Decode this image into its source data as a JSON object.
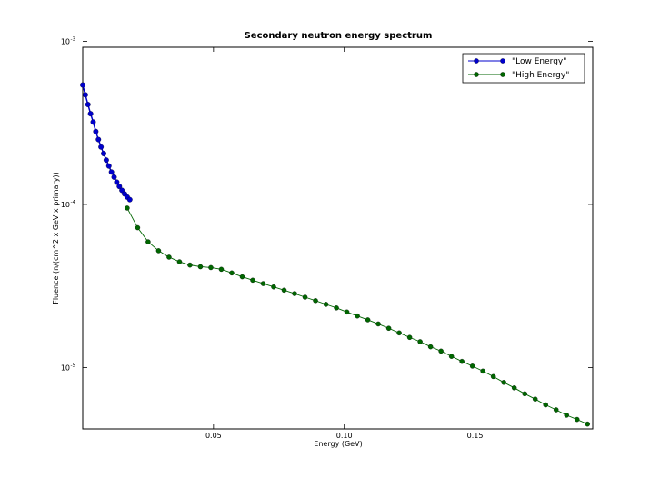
{
  "chart_data": {
    "type": "line",
    "title": "Secondary neutron energy spectrum",
    "xlabel": "Energy (GeV)",
    "ylabel": "Fluence (n/(cm^2 x GeV x primary))",
    "xlim": [
      0.0,
      0.195
    ],
    "ylim": [
      4.2e-06,
      0.00092
    ],
    "yscale": "log",
    "grid": false,
    "legend_position": "top-right",
    "x_ticks": [
      {
        "value": 0.05,
        "label": "0.05"
      },
      {
        "value": 0.1,
        "label": "0.10"
      },
      {
        "value": 0.15,
        "label": "0.15"
      }
    ],
    "y_ticks": [
      {
        "value": 1e-05,
        "base": "10",
        "exp": "-5"
      },
      {
        "value": 0.0001,
        "base": "10",
        "exp": "-4"
      },
      {
        "value": 0.001,
        "base": "10",
        "exp": "-3"
      }
    ],
    "series": [
      {
        "name": "\"Low Energy\"",
        "color": "#0000cc",
        "marker": "circle",
        "x": [
          0.0,
          0.001,
          0.002,
          0.003,
          0.004,
          0.005,
          0.006,
          0.007,
          0.008,
          0.009,
          0.01,
          0.011,
          0.012,
          0.013,
          0.014,
          0.015,
          0.016,
          0.017,
          0.018
        ],
        "y": [
          0.00054,
          0.00047,
          0.00041,
          0.00036,
          0.00032,
          0.00028,
          0.00025,
          0.000225,
          0.000205,
          0.000187,
          0.000172,
          0.000158,
          0.000147,
          0.000137,
          0.000129,
          0.000122,
          0.000116,
          0.000111,
          0.000107
        ]
      },
      {
        "name": "\"High Energy\"",
        "color": "#006600",
        "marker": "circle",
        "x": [
          0.017,
          0.021,
          0.025,
          0.029,
          0.033,
          0.037,
          0.041,
          0.045,
          0.049,
          0.053,
          0.057,
          0.061,
          0.065,
          0.069,
          0.073,
          0.077,
          0.081,
          0.085,
          0.089,
          0.093,
          0.097,
          0.101,
          0.105,
          0.109,
          0.113,
          0.117,
          0.121,
          0.125,
          0.129,
          0.133,
          0.137,
          0.141,
          0.145,
          0.149,
          0.153,
          0.157,
          0.161,
          0.165,
          0.169,
          0.173,
          0.177,
          0.181,
          0.185,
          0.189,
          0.193
        ],
        "y": [
          9.5e-05,
          7.2e-05,
          5.9e-05,
          5.2e-05,
          4.75e-05,
          4.45e-05,
          4.25e-05,
          4.15e-05,
          4.1e-05,
          4e-05,
          3.8e-05,
          3.6e-05,
          3.43e-05,
          3.27e-05,
          3.12e-05,
          2.98e-05,
          2.84e-05,
          2.7e-05,
          2.57e-05,
          2.44e-05,
          2.32e-05,
          2.19e-05,
          2.07e-05,
          1.96e-05,
          1.85e-05,
          1.74e-05,
          1.63e-05,
          1.53e-05,
          1.44e-05,
          1.34e-05,
          1.26e-05,
          1.17e-05,
          1.09e-05,
          1.02e-05,
          9.5e-06,
          8.8e-06,
          8.1e-06,
          7.5e-06,
          6.9e-06,
          6.4e-06,
          5.9e-06,
          5.5e-06,
          5.1e-06,
          4.8e-06,
          4.5e-06
        ]
      }
    ]
  }
}
